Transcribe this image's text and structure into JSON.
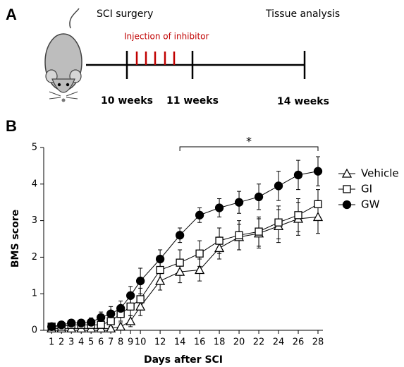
{
  "panel_a": {
    "label": "A",
    "timeline": {
      "start": "SCI surgery",
      "injection": "Injection of inhibitor",
      "end": "Tissue analysis",
      "ticks": [
        "10 weeks",
        "11 weeks",
        "14 weeks"
      ]
    }
  },
  "chart_data": {
    "type": "line",
    "panel_label": "B",
    "x_label": "Days after SCI",
    "y_label": "BMS score",
    "x": [
      1,
      2,
      3,
      4,
      5,
      6,
      7,
      8,
      9,
      10,
      12,
      14,
      16,
      18,
      20,
      22,
      24,
      26,
      28
    ],
    "xlim": [
      0.2,
      28.5
    ],
    "xticks": [
      1,
      2,
      3,
      4,
      5,
      6,
      7,
      8,
      9,
      10,
      12,
      14,
      16,
      18,
      20,
      22,
      24,
      26,
      28
    ],
    "ylim": [
      0,
      5
    ],
    "yticks": [
      0,
      1,
      2,
      3,
      4,
      5
    ],
    "legend": "right",
    "series": [
      {
        "name": "Vehicle",
        "color": "#000000",
        "marker": "triangle",
        "filled": false,
        "values": [
          0.05,
          0.05,
          0.05,
          0.05,
          0.05,
          0.05,
          0.05,
          0.1,
          0.25,
          0.65,
          1.35,
          1.6,
          1.65,
          2.25,
          2.55,
          2.65,
          2.85,
          3.05,
          3.1
        ],
        "errors": [
          0.03,
          0.03,
          0.05,
          0.05,
          0.05,
          0.05,
          0.05,
          0.1,
          0.15,
          0.25,
          0.25,
          0.3,
          0.3,
          0.3,
          0.35,
          0.4,
          0.45,
          0.45,
          0.45
        ]
      },
      {
        "name": "GI",
        "color": "#000000",
        "marker": "square",
        "filled": false,
        "values": [
          0.1,
          0.1,
          0.15,
          0.15,
          0.15,
          0.15,
          0.25,
          0.45,
          0.65,
          0.85,
          1.65,
          1.85,
          2.1,
          2.45,
          2.6,
          2.7,
          2.95,
          3.15,
          3.45
        ],
        "errors": [
          0.05,
          0.05,
          0.1,
          0.1,
          0.1,
          0.1,
          0.15,
          0.2,
          0.25,
          0.3,
          0.3,
          0.35,
          0.35,
          0.35,
          0.4,
          0.4,
          0.45,
          0.45,
          0.4
        ]
      },
      {
        "name": "GW",
        "color": "#000000",
        "marker": "circle",
        "filled": true,
        "values": [
          0.1,
          0.15,
          0.2,
          0.2,
          0.22,
          0.35,
          0.45,
          0.6,
          0.95,
          1.35,
          1.95,
          2.6,
          3.15,
          3.35,
          3.5,
          3.65,
          3.95,
          4.25,
          4.35
        ],
        "errors": [
          0.05,
          0.08,
          0.1,
          0.1,
          0.12,
          0.15,
          0.2,
          0.2,
          0.25,
          0.35,
          0.25,
          0.2,
          0.2,
          0.25,
          0.3,
          0.35,
          0.4,
          0.4,
          0.4
        ]
      }
    ],
    "annotations": [
      {
        "text": "*",
        "x": [
          14,
          28
        ]
      }
    ]
  }
}
